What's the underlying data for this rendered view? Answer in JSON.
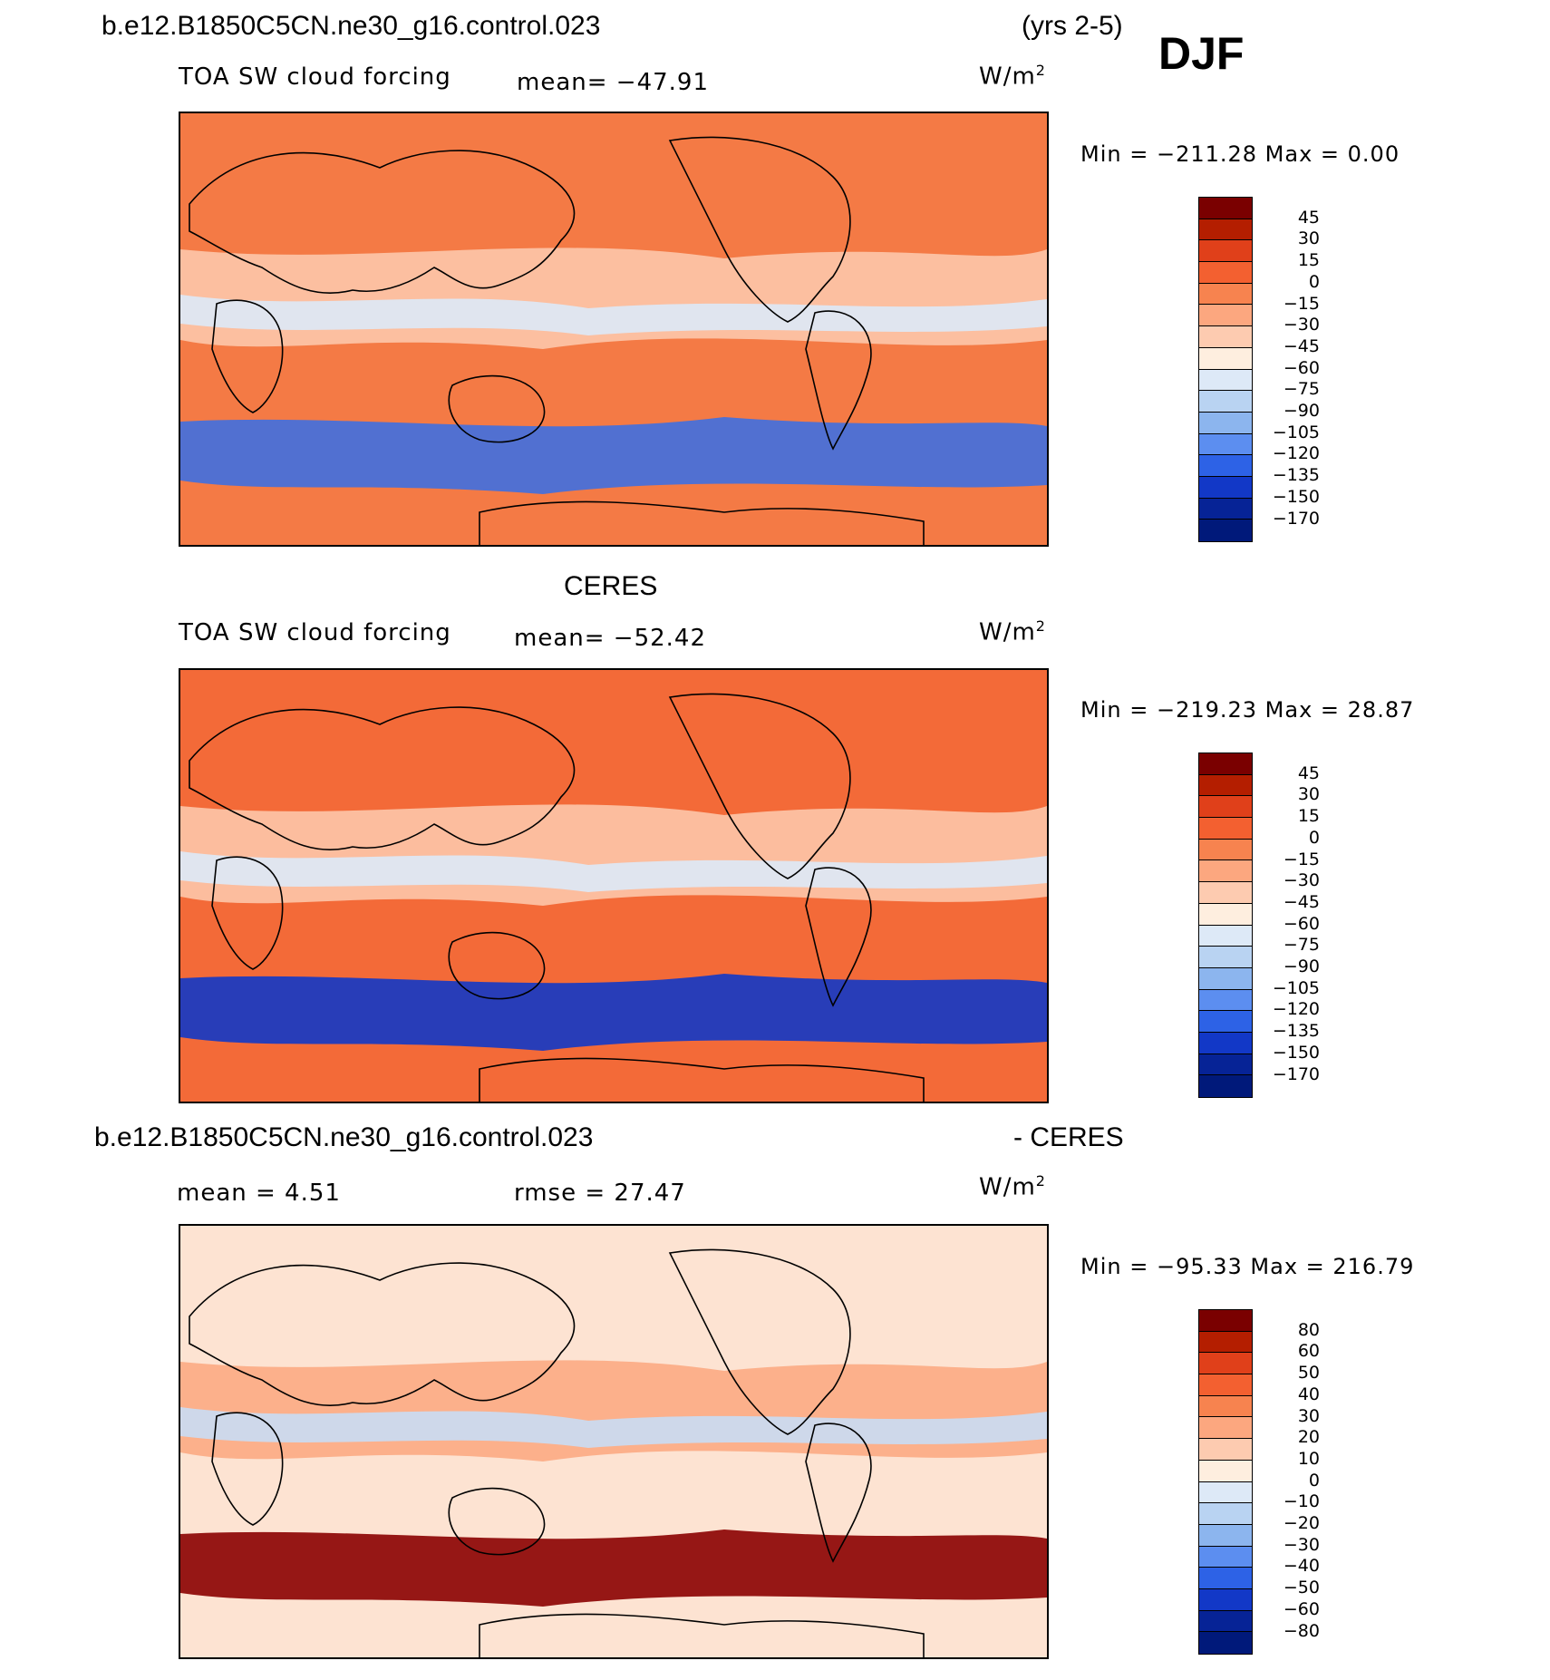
{
  "header": {
    "case_name": "b.e12.B1850C5CN.ne30_g16.control.023",
    "years": "(yrs 2-5)",
    "season": "DJF"
  },
  "panels": [
    {
      "id": "model",
      "title": "",
      "field": "TOA SW cloud forcing",
      "stat_left": "",
      "mean": "mean= −47.91",
      "units": "W/m",
      "units_exp": "2",
      "minmax": "Min = −211.28 Max =    0.00",
      "legend_labels": [
        "45",
        "30",
        "15",
        "0",
        "−15",
        "−30",
        "−45",
        "−60",
        "−75",
        "−90",
        "−105",
        "−120",
        "−135",
        "−150",
        "−170"
      ],
      "legend_colors": [
        "#7a0000",
        "#b41e00",
        "#e0401a",
        "#f36030",
        "#f7834f",
        "#fca77f",
        "#fdcbb0",
        "#feeedf",
        "#dde9f7",
        "#b9d3f2",
        "#8cb5ee",
        "#5c8ef0",
        "#2d62e6",
        "#1238c7",
        "#062396",
        "#00197a"
      ],
      "colors": {
        "base": "#f47a45",
        "band": "#3f6fe0",
        "light": "#fdcbb0",
        "pale": "#dde9f7"
      }
    },
    {
      "id": "obs",
      "title": "CERES",
      "field": "TOA SW cloud forcing",
      "stat_left": "",
      "mean": "mean= −52.42",
      "units": "W/m",
      "units_exp": "2",
      "minmax": "Min = −219.23 Max =   28.87",
      "legend_labels": [
        "45",
        "30",
        "15",
        "0",
        "−15",
        "−30",
        "−45",
        "−60",
        "−75",
        "−90",
        "−105",
        "−120",
        "−135",
        "−150",
        "−170"
      ],
      "legend_colors": [
        "#7a0000",
        "#b41e00",
        "#e0401a",
        "#f36030",
        "#f7834f",
        "#fca77f",
        "#fdcbb0",
        "#feeedf",
        "#dde9f7",
        "#b9d3f2",
        "#8cb5ee",
        "#5c8ef0",
        "#2d62e6",
        "#1238c7",
        "#062396",
        "#00197a"
      ],
      "colors": {
        "base": "#f36a38",
        "band": "#1238c7",
        "light": "#fdcbb0",
        "pale": "#dde9f7"
      }
    },
    {
      "id": "diff",
      "title_left": "b.e12.B1850C5CN.ne30_g16.control.023",
      "title_right": "- CERES",
      "field": "",
      "stat_left": "mean =    4.51",
      "mean": "rmse =   27.47",
      "units": "W/m",
      "units_exp": "2",
      "minmax": "Min = −95.33 Max = 216.79",
      "legend_labels": [
        "80",
        "60",
        "50",
        "40",
        "30",
        "20",
        "10",
        "0",
        "−10",
        "−20",
        "−30",
        "−40",
        "−50",
        "−60",
        "−80"
      ],
      "legend_colors": [
        "#7a0000",
        "#b41e00",
        "#e0401a",
        "#f36030",
        "#f7834f",
        "#fca77f",
        "#fdcbb0",
        "#feeedf",
        "#dde9f7",
        "#b9d3f2",
        "#8cb5ee",
        "#5c8ef0",
        "#2d62e6",
        "#1238c7",
        "#062396",
        "#00197a"
      ],
      "colors": {
        "base": "#fde3d2",
        "band": "#8b0000",
        "light": "#fca77f",
        "pale": "#c9ddf4"
      }
    }
  ]
}
